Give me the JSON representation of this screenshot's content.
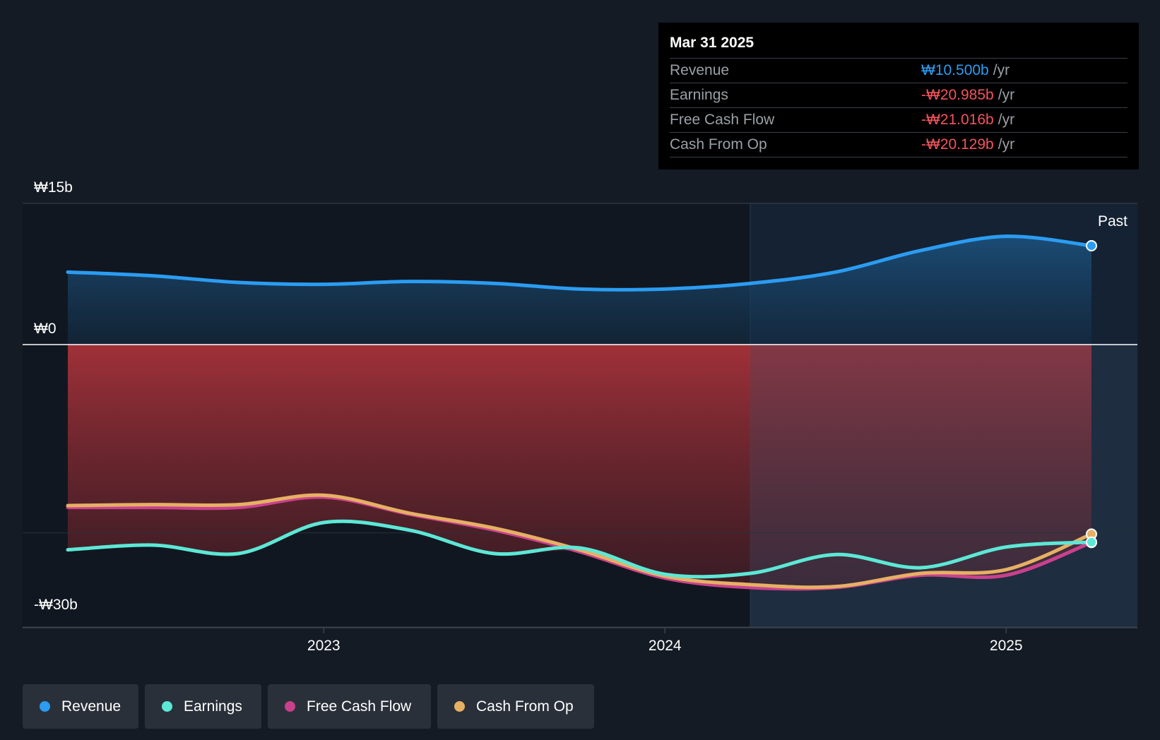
{
  "tooltip": {
    "date": "Mar 31 2025",
    "rows": [
      {
        "label": "Revenue",
        "value": "₩10.500b",
        "unit": "/yr",
        "color": "#2b9cf2"
      },
      {
        "label": "Earnings",
        "value": "-₩20.985b",
        "unit": "/yr",
        "color": "#f2545b"
      },
      {
        "label": "Free Cash Flow",
        "value": "-₩21.016b",
        "unit": "/yr",
        "color": "#f2545b"
      },
      {
        "label": "Cash From Op",
        "value": "-₩20.129b",
        "unit": "/yr",
        "color": "#f2545b"
      }
    ]
  },
  "past_label": "Past",
  "legend": [
    {
      "label": "Revenue",
      "color": "#2b9cf2"
    },
    {
      "label": "Earnings",
      "color": "#5ce8d6"
    },
    {
      "label": "Free Cash Flow",
      "color": "#c9418d"
    },
    {
      "label": "Cash From Op",
      "color": "#e6b064"
    }
  ],
  "chart_data": {
    "type": "line",
    "y_tick_labels": [
      "₩15b",
      "₩0",
      "-₩30b"
    ],
    "y_ticks": [
      15,
      0,
      -30
    ],
    "ylim": [
      -30,
      15
    ],
    "x_tick_labels": [
      "2023",
      "2024",
      "2025"
    ],
    "x_ticks": [
      2023.0,
      2024.0,
      2025.0
    ],
    "xlim": [
      2022.125,
      2025.25
    ],
    "past_region_start": 2024.25,
    "grid": "horizontal",
    "legend_position": "bottom",
    "x": [
      2022.25,
      2022.5,
      2022.75,
      2023.0,
      2023.25,
      2023.5,
      2023.75,
      2024.0,
      2024.25,
      2024.5,
      2024.75,
      2025.0,
      2025.25
    ],
    "series": [
      {
        "name": "Revenue",
        "color": "#2b9cf2",
        "values": [
          7.7,
          7.3,
          6.6,
          6.4,
          6.7,
          6.5,
          5.9,
          5.9,
          6.5,
          7.7,
          10.0,
          11.5,
          10.5
        ]
      },
      {
        "name": "Earnings",
        "color": "#5ce8d6",
        "values": [
          -21.8,
          -21.3,
          -22.2,
          -18.9,
          -19.7,
          -22.2,
          -21.6,
          -24.4,
          -24.3,
          -22.3,
          -23.7,
          -21.5,
          -20.985
        ]
      },
      {
        "name": "Free Cash Flow",
        "color": "#c9418d",
        "values": [
          -17.3,
          -17.3,
          -17.3,
          -16.2,
          -18.0,
          -19.7,
          -22.0,
          -24.8,
          -25.8,
          -25.8,
          -24.5,
          -24.5,
          -21.016
        ]
      },
      {
        "name": "Cash From Op",
        "color": "#e6b064",
        "values": [
          -17.1,
          -17.0,
          -17.0,
          -16.0,
          -17.9,
          -19.5,
          -21.8,
          -24.6,
          -25.5,
          -25.7,
          -24.3,
          -23.9,
          -20.129
        ]
      }
    ]
  }
}
